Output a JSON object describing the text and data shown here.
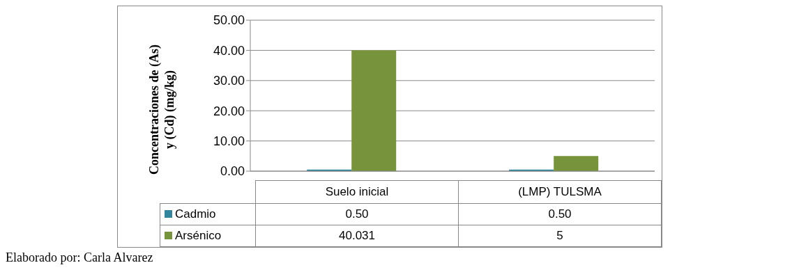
{
  "chart_data": {
    "type": "bar",
    "ylabel": "Concentraciones de (As) y (Cd) (mg/kg)",
    "categories": [
      "Suelo inicial",
      "(LMP) TULSMA"
    ],
    "series": [
      {
        "name": "Cadmio",
        "color": "#31859c",
        "values": [
          0.5,
          0.5
        ],
        "value_labels": [
          "0.50",
          "0.50"
        ]
      },
      {
        "name": "Arsénico",
        "color": "#77933c",
        "values": [
          40.031,
          5
        ],
        "value_labels": [
          "40.031",
          "5"
        ]
      }
    ],
    "ylim": [
      0,
      50
    ],
    "yticks": [
      {
        "value": 0,
        "label": "0.00"
      },
      {
        "value": 10,
        "label": "10.00"
      },
      {
        "value": 20,
        "label": "20.00"
      },
      {
        "value": 30,
        "label": "30.00"
      },
      {
        "value": 40,
        "label": "40.00"
      },
      {
        "value": 50,
        "label": "50.00"
      }
    ],
    "grid": "y",
    "legend": "bottom",
    "annotations": [
      "Elaborado por: Carla Alvarez"
    ]
  }
}
